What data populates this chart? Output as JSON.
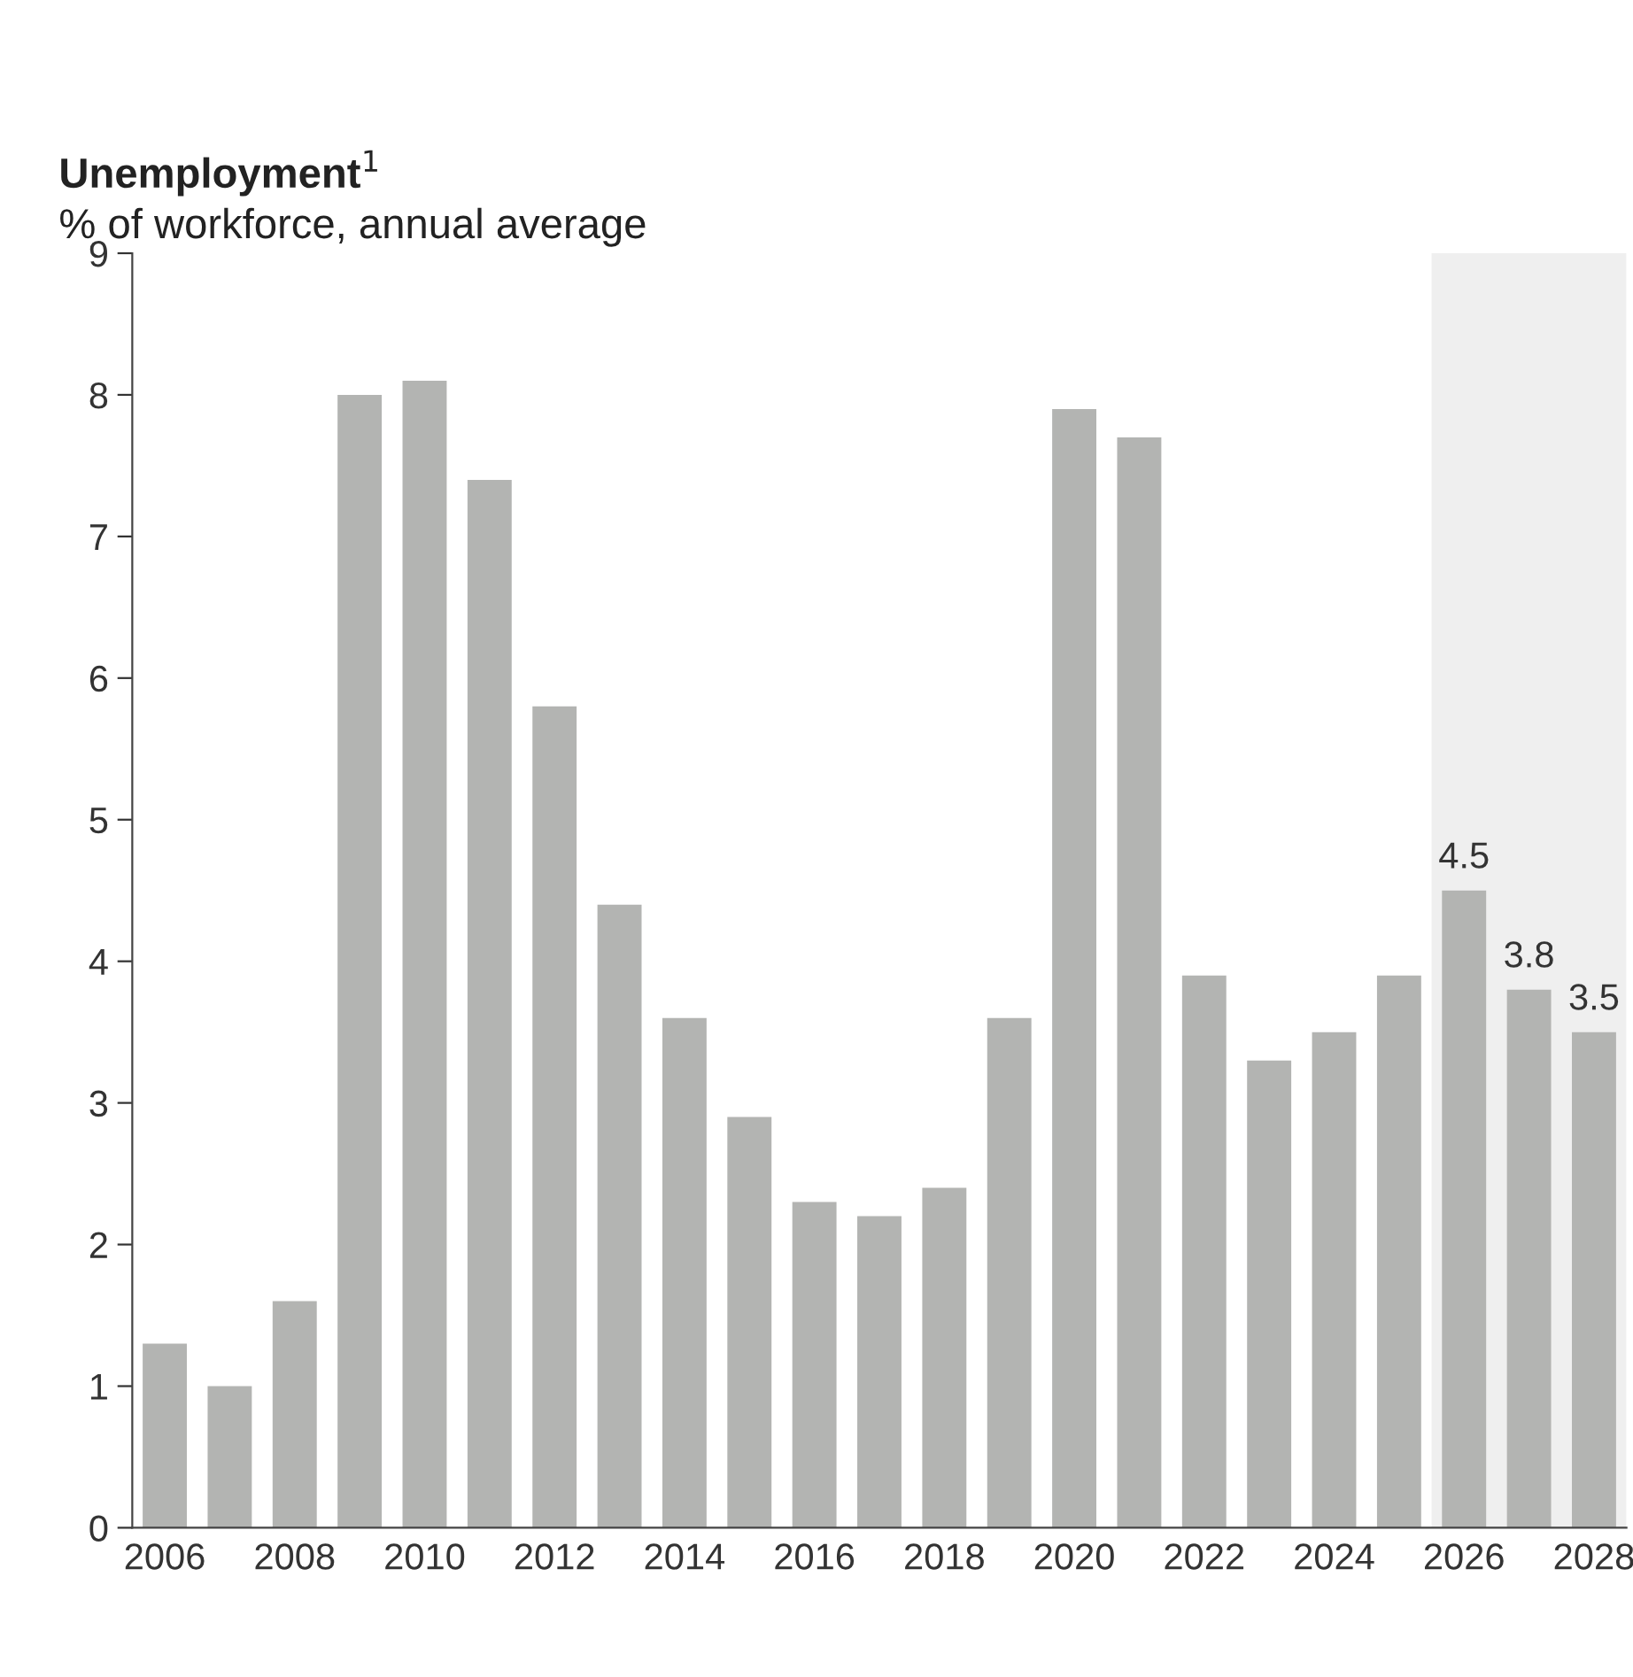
{
  "chart_data": {
    "type": "bar",
    "title": "Unemployment$^{1}$",
    "subtitle": "% of workforce, annual average",
    "categories": [
      "2006",
      null,
      "2008",
      null,
      "2010",
      null,
      "2012",
      null,
      "2014",
      null,
      "2016",
      null,
      "2018",
      null,
      "2020",
      null,
      "2022",
      null,
      "2024",
      null,
      "2026",
      null,
      "2028"
    ],
    "values": [
      1.3,
      1.0,
      1.6,
      8.0,
      8.1,
      7.4,
      5.8,
      4.4,
      3.6,
      2.9,
      2.3,
      2.2,
      2.4,
      3.6,
      7.9,
      7.7,
      3.9,
      3.3,
      3.5,
      3.9,
      4.5,
      3.8,
      3.5
    ],
    "value_labels": [
      null,
      null,
      null,
      null,
      null,
      null,
      null,
      null,
      null,
      null,
      null,
      null,
      null,
      null,
      null,
      null,
      null,
      null,
      null,
      null,
      "4.5",
      "3.8",
      "3.5"
    ],
    "color": "#b3b4b2",
    "ylim": [
      0,
      9
    ],
    "yticks": [
      0,
      1,
      2,
      3,
      4,
      5,
      6,
      7,
      8,
      9
    ],
    "bands": [
      {
        "axis": "x",
        "from": "2026",
        "to": "2028",
        "color": "#efefef"
      }
    ],
    "grid": false,
    "legend": false
  }
}
